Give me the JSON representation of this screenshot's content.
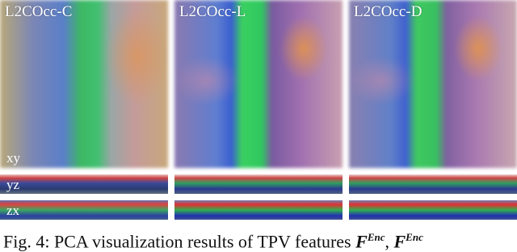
{
  "panels": [
    {
      "label": "L2COcc-C"
    },
    {
      "label": "L2COcc-L"
    },
    {
      "label": "L2COcc-D"
    }
  ],
  "row_labels": {
    "xy": "xy",
    "yz": "yz",
    "zx": "zx"
  },
  "caption": {
    "text": "Fig. 4: PCA visualization results of TPV features",
    "symbols": [
      {
        "base": "F",
        "sup": "Enc"
      },
      {
        "base": "F",
        "sup": "Enc"
      }
    ],
    "separator": ","
  }
}
